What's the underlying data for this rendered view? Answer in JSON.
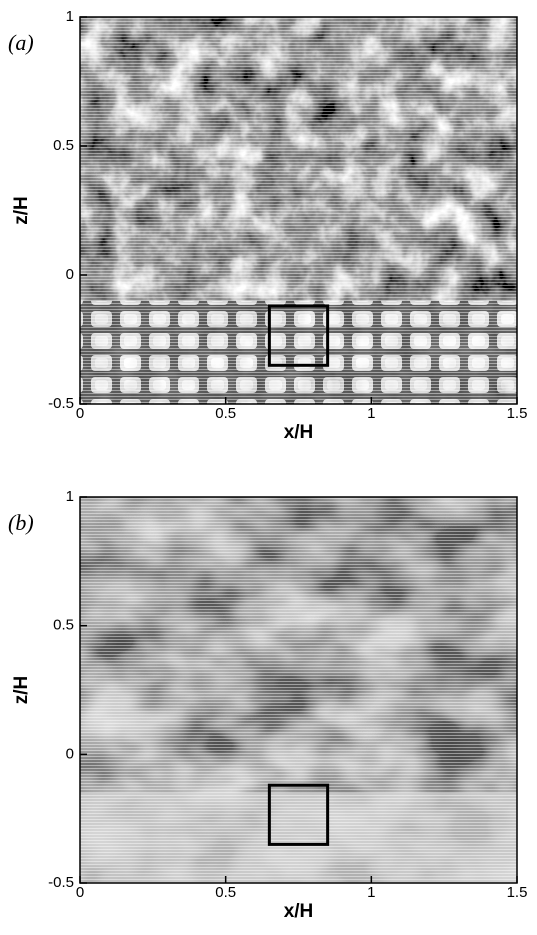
{
  "chart_data": [
    {
      "type": "vector",
      "panel_label": "(a)",
      "x_label": "x/H",
      "y_label": "z/H",
      "xlim": [
        0,
        1.5
      ],
      "ylim": [
        -0.5,
        1
      ],
      "xticks": [
        0,
        0.5,
        1,
        1.5
      ],
      "yticks": [
        -0.5,
        0,
        0.5,
        1
      ],
      "box": {
        "x": [
          0.65,
          0.85
        ],
        "y": [
          -0.35,
          -0.12
        ]
      }
    },
    {
      "type": "vector",
      "panel_label": "(b)",
      "x_label": "x/H",
      "y_label": "z/H",
      "xlim": [
        0,
        1.5
      ],
      "ylim": [
        -0.5,
        1
      ],
      "xticks": [
        0,
        0.5,
        1,
        1.5
      ],
      "yticks": [
        -0.5,
        0,
        0.5,
        1
      ],
      "box": {
        "x": [
          0.65,
          0.85
        ],
        "y": [
          -0.35,
          -0.12
        ]
      }
    }
  ]
}
